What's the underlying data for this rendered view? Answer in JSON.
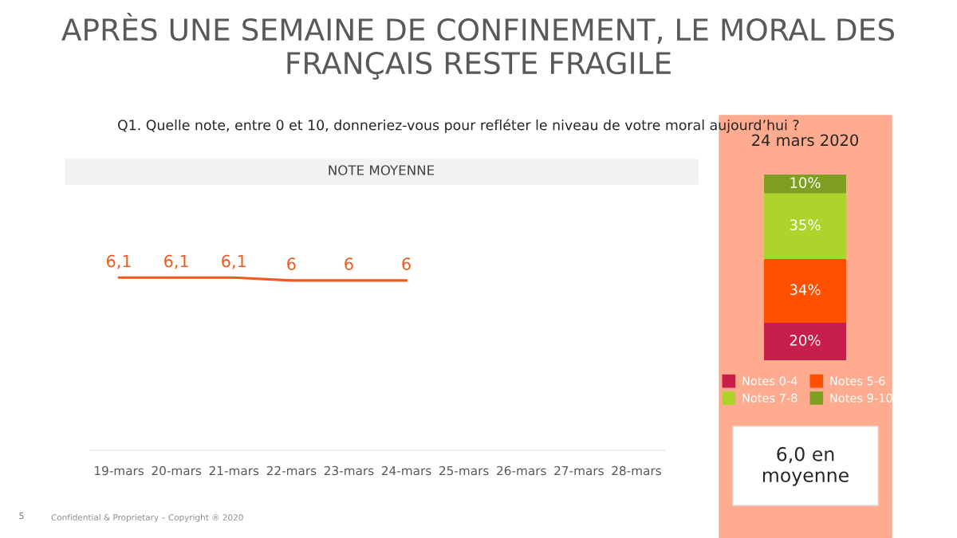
{
  "chart_data": [
    {
      "type": "line",
      "title": "APRÈS UNE SEMAINE DE CONFINEMENT, LE MORAL DES FRANÇAIS RESTE FRAGILE",
      "subtitle": "Q1. Quelle note, entre 0 et 10, donneriez-vous pour refléter le niveau de votre moral aujourd’hui ?",
      "annotations": [
        "NOTE MOYENNE",
        "5",
        "Confidential & Proprietary – Copyright ® 2020"
      ],
      "categories": [
        "19-mars",
        "20-mars",
        "21-mars",
        "22-mars",
        "23-mars",
        "24-mars",
        "25-mars",
        "26-mars",
        "27-mars",
        "28-mars"
      ],
      "series": [
        {
          "color": "#f05a1e",
          "values": [
            6.1,
            6.1,
            6.1,
            6,
            6,
            6,
            null,
            null,
            null,
            null
          ],
          "value_labels": [
            "6,1",
            "6,1",
            "6,1",
            "6",
            "6",
            "6",
            null,
            null,
            null,
            null
          ]
        }
      ],
      "tick_labels": "x",
      "grid": false,
      "legend": false,
      "marker": "none"
    },
    {
      "type": "bar",
      "stacked": true,
      "title": "24 mars 2020",
      "categories": [
        null
      ],
      "annotations": [
        "6,0 en\nmoyenne"
      ],
      "series": [
        {
          "name": "Notes 0-4",
          "color": "#c81e4b",
          "values": [
            20
          ],
          "value_labels": [
            "20%"
          ]
        },
        {
          "name": "Notes 5-6",
          "color": "#ff5000",
          "values": [
            34
          ],
          "value_labels": [
            "34%"
          ]
        },
        {
          "name": "Notes 7-8",
          "color": "#add42a",
          "values": [
            35
          ],
          "value_labels": [
            "35%"
          ]
        },
        {
          "name": "Notes 9-10",
          "color": "#7f9f22",
          "values": [
            10
          ],
          "value_labels": [
            "10%"
          ]
        }
      ],
      "tick_labels": false,
      "grid": false,
      "legend": "bottom"
    }
  ]
}
